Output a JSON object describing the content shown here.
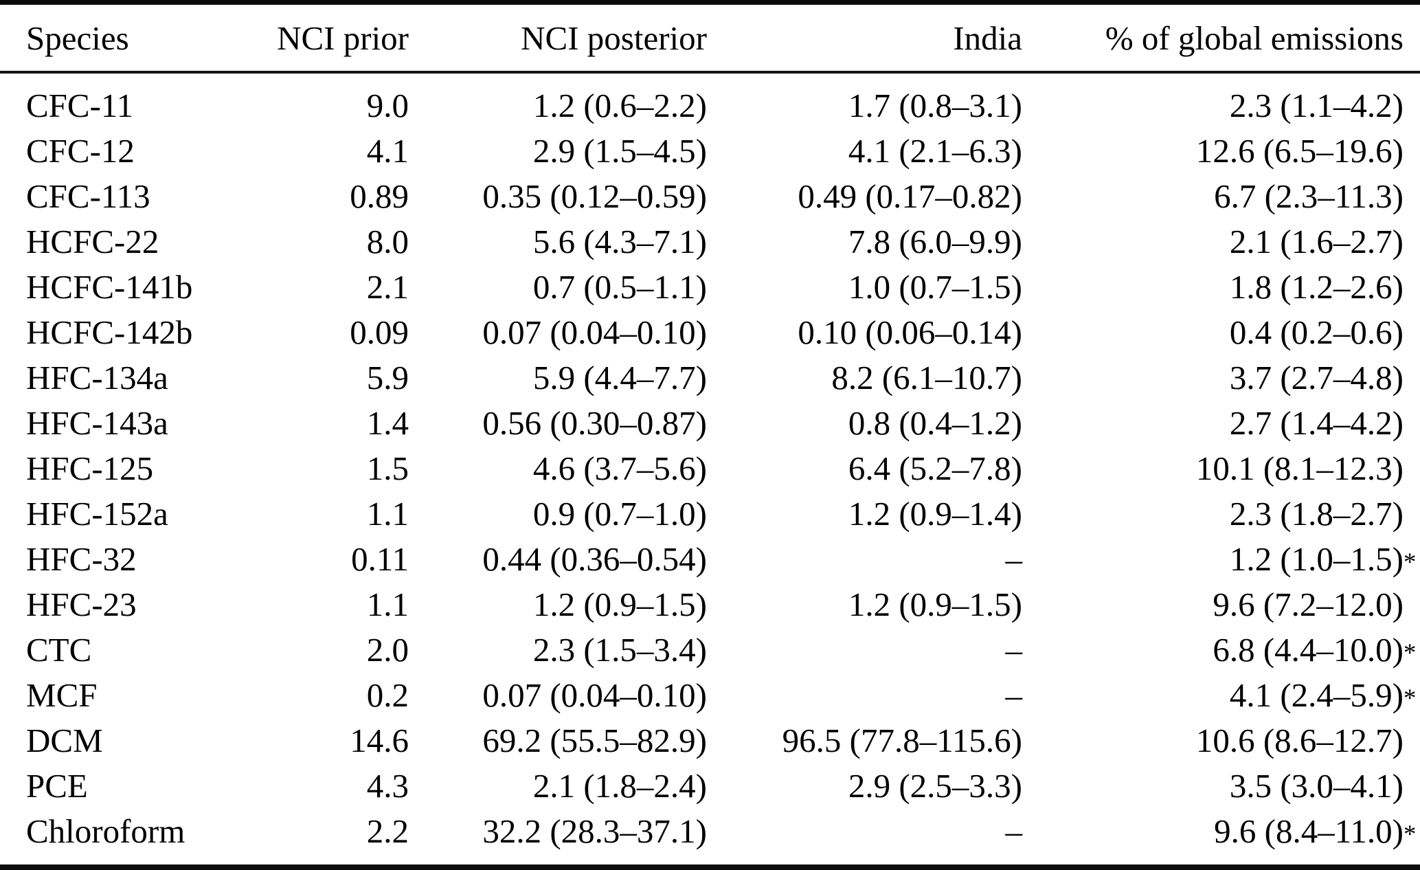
{
  "table": {
    "columns": [
      "Species",
      "NCI prior",
      "NCI posterior",
      "India",
      "% of global emissions"
    ],
    "rows": [
      {
        "species": "CFC-11",
        "nci_prior": "9.0",
        "nci_posterior": "1.2 (0.6–2.2)",
        "india": "1.7 (0.8–3.1)",
        "pct_global": "2.3 (1.1–4.2)",
        "pct_star": ""
      },
      {
        "species": "CFC-12",
        "nci_prior": "4.1",
        "nci_posterior": "2.9 (1.5–4.5)",
        "india": "4.1 (2.1–6.3)",
        "pct_global": "12.6 (6.5–19.6)",
        "pct_star": ""
      },
      {
        "species": "CFC-113",
        "nci_prior": "0.89",
        "nci_posterior": "0.35 (0.12–0.59)",
        "india": "0.49 (0.17–0.82)",
        "pct_global": "6.7 (2.3–11.3)",
        "pct_star": ""
      },
      {
        "species": "HCFC-22",
        "nci_prior": "8.0",
        "nci_posterior": "5.6 (4.3–7.1)",
        "india": "7.8 (6.0–9.9)",
        "pct_global": "2.1 (1.6–2.7)",
        "pct_star": ""
      },
      {
        "species": "HCFC-141b",
        "nci_prior": "2.1",
        "nci_posterior": "0.7 (0.5–1.1)",
        "india": "1.0 (0.7–1.5)",
        "pct_global": "1.8 (1.2–2.6)",
        "pct_star": ""
      },
      {
        "species": "HCFC-142b",
        "nci_prior": "0.09",
        "nci_posterior": "0.07 (0.04–0.10)",
        "india": "0.10 (0.06–0.14)",
        "pct_global": "0.4 (0.2–0.6)",
        "pct_star": ""
      },
      {
        "species": "HFC-134a",
        "nci_prior": "5.9",
        "nci_posterior": "5.9 (4.4–7.7)",
        "india": "8.2 (6.1–10.7)",
        "pct_global": "3.7 (2.7–4.8)",
        "pct_star": ""
      },
      {
        "species": "HFC-143a",
        "nci_prior": "1.4",
        "nci_posterior": "0.56 (0.30–0.87)",
        "india": "0.8 (0.4–1.2)",
        "pct_global": "2.7 (1.4–4.2)",
        "pct_star": ""
      },
      {
        "species": "HFC-125",
        "nci_prior": "1.5",
        "nci_posterior": "4.6 (3.7–5.6)",
        "india": "6.4 (5.2–7.8)",
        "pct_global": "10.1 (8.1–12.3)",
        "pct_star": ""
      },
      {
        "species": "HFC-152a",
        "nci_prior": "1.1",
        "nci_posterior": "0.9 (0.7–1.0)",
        "india": "1.2 (0.9–1.4)",
        "pct_global": "2.3 (1.8–2.7)",
        "pct_star": ""
      },
      {
        "species": "HFC-32",
        "nci_prior": "0.11",
        "nci_posterior": "0.44 (0.36–0.54)",
        "india": "–",
        "pct_global": "1.2 (1.0–1.5)",
        "pct_star": "*"
      },
      {
        "species": "HFC-23",
        "nci_prior": "1.1",
        "nci_posterior": "1.2 (0.9–1.5)",
        "india": "1.2 (0.9–1.5)",
        "pct_global": "9.6 (7.2–12.0)",
        "pct_star": ""
      },
      {
        "species": "CTC",
        "nci_prior": "2.0",
        "nci_posterior": "2.3 (1.5–3.4)",
        "india": "–",
        "pct_global": "6.8 (4.4–10.0)",
        "pct_star": "*"
      },
      {
        "species": "MCF",
        "nci_prior": "0.2",
        "nci_posterior": "0.07 (0.04–0.10)",
        "india": "–",
        "pct_global": "4.1 (2.4–5.9)",
        "pct_star": "*"
      },
      {
        "species": "DCM",
        "nci_prior": "14.6",
        "nci_posterior": "69.2 (55.5–82.9)",
        "india": "96.5 (77.8–115.6)",
        "pct_global": "10.6 (8.6–12.7)",
        "pct_star": ""
      },
      {
        "species": "PCE",
        "nci_prior": "4.3",
        "nci_posterior": "2.1 (1.8–2.4)",
        "india": "2.9 (2.5–3.3)",
        "pct_global": "3.5 (3.0–4.1)",
        "pct_star": ""
      },
      {
        "species": "Chloroform",
        "nci_prior": "2.2",
        "nci_posterior": "32.2 (28.3–37.1)",
        "india": "–",
        "pct_global": "9.6 (8.4–11.0)",
        "pct_star": "*"
      }
    ]
  }
}
